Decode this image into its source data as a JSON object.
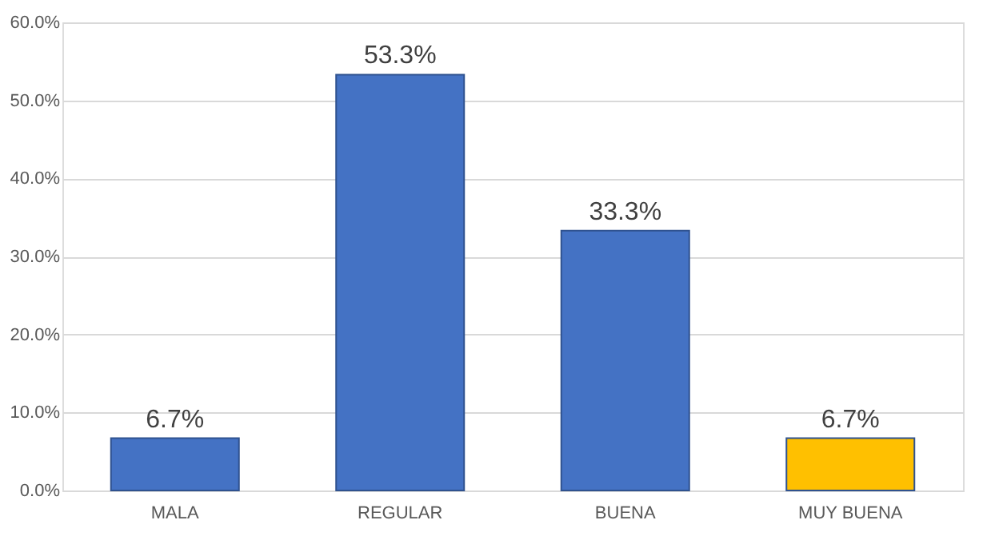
{
  "chart_data": {
    "type": "bar",
    "categories": [
      "MALA",
      "REGULAR",
      "BUENA",
      "MUY BUENA"
    ],
    "values": [
      6.7,
      53.3,
      33.3,
      6.7
    ],
    "colors": [
      "#4472c4",
      "#4472c4",
      "#4472c4",
      "#ffc000"
    ],
    "value_labels": [
      "6.7%",
      "53.3%",
      "33.3%",
      "6.7%"
    ],
    "ylim": [
      0,
      60
    ],
    "yticks": [
      {
        "value": 0,
        "label": "0.0%"
      },
      {
        "value": 10,
        "label": "10.0%"
      },
      {
        "value": 20,
        "label": "20.0%"
      },
      {
        "value": 30,
        "label": "30.0%"
      },
      {
        "value": 40,
        "label": "40.0%"
      },
      {
        "value": 50,
        "label": "50.0%"
      },
      {
        "value": 60,
        "label": "60.0%"
      }
    ],
    "grid": "y"
  }
}
